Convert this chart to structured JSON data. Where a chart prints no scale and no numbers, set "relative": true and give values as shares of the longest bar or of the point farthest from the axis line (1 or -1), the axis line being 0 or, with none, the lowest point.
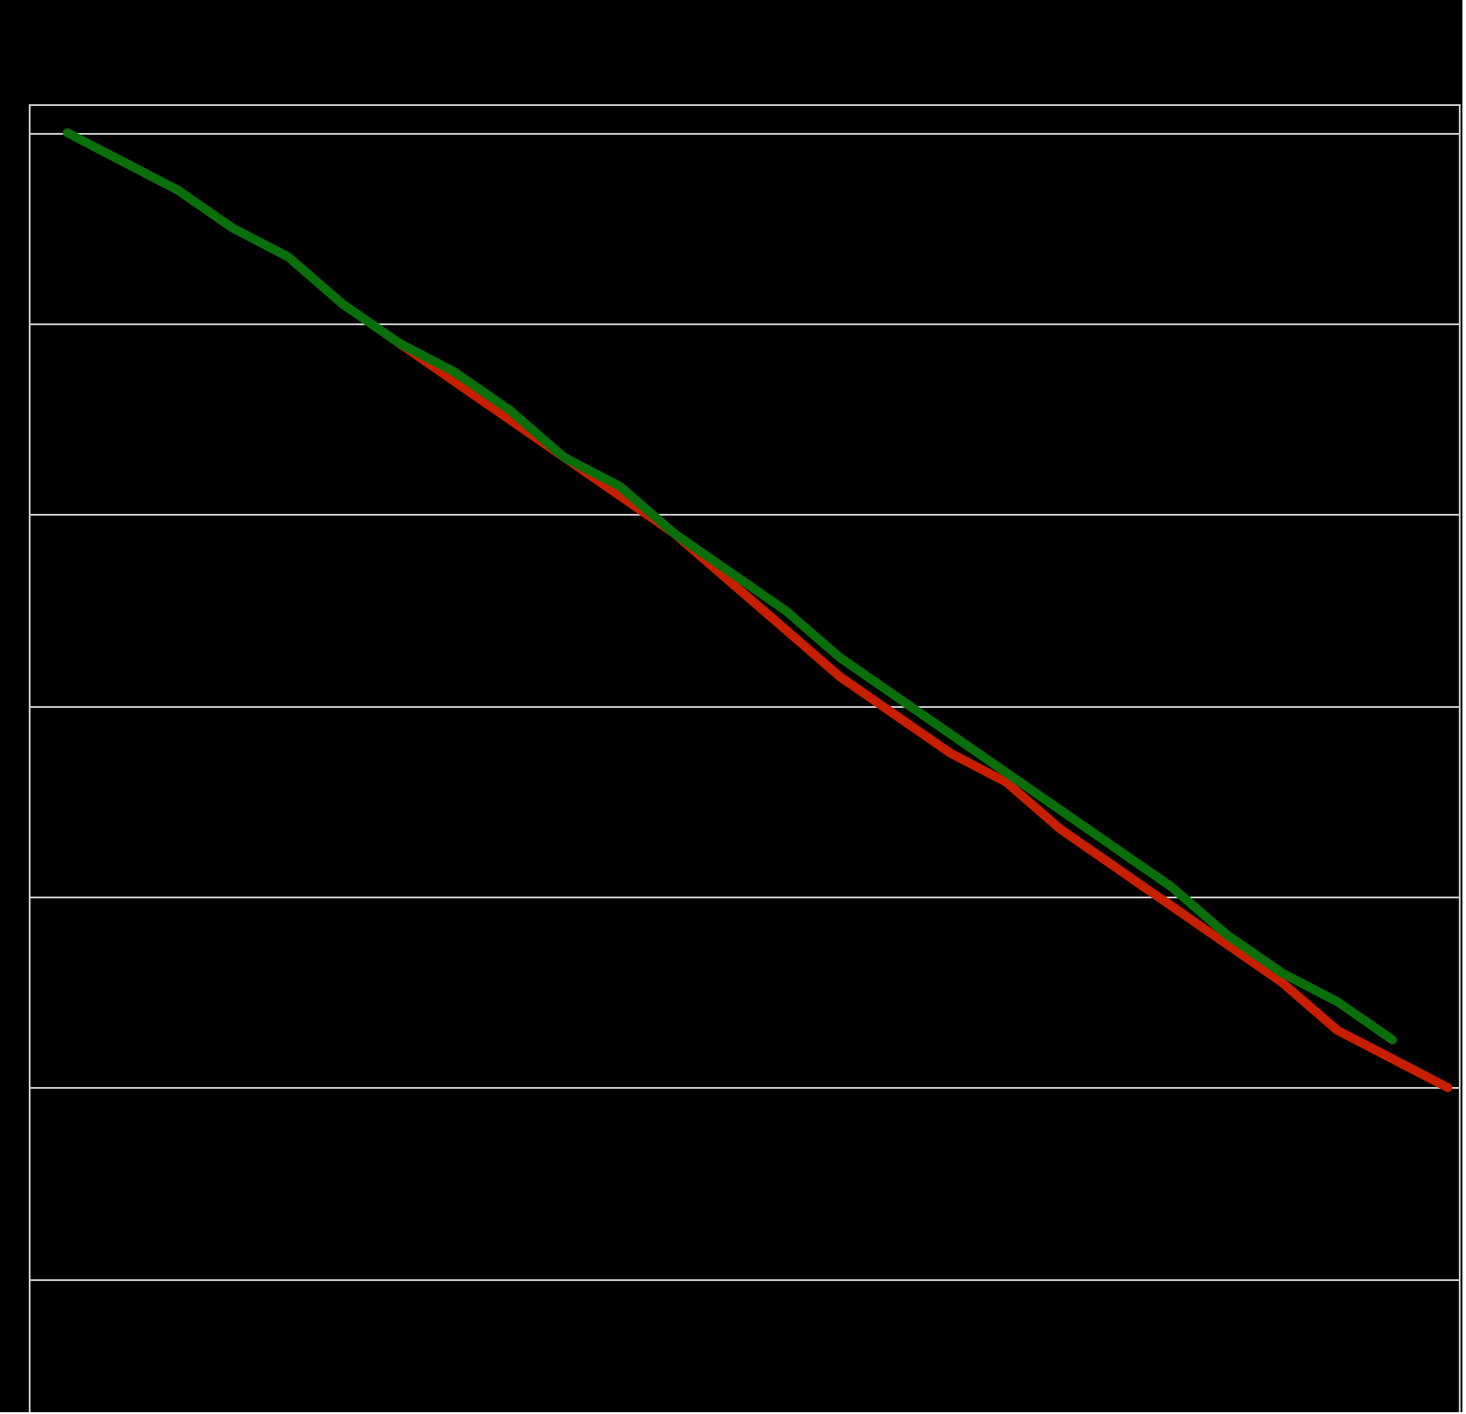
{
  "chart_data": {
    "type": "line",
    "relative": true,
    "grid": "y",
    "marker": "none",
    "line_style": "solid",
    "categories": [
      null,
      null,
      null,
      null,
      null,
      null,
      null,
      null,
      null,
      null,
      null,
      null,
      null,
      null,
      null,
      null,
      null,
      null,
      null,
      null,
      null,
      null,
      null,
      null,
      null,
      null
    ],
    "series": [
      {
        "color": "#c81e00",
        "values": [
          null,
          null,
          null,
          null,
          null,
          null,
          0.78,
          0.74,
          0.7,
          0.66,
          0.62,
          0.58,
          0.53,
          0.48,
          0.43,
          0.39,
          0.35,
          0.32,
          0.27,
          0.23,
          0.19,
          0.15,
          0.11,
          0.06,
          0.03,
          0.0
        ]
      },
      {
        "color": "#0a6e0a",
        "values": [
          1.0,
          0.97,
          0.94,
          0.9,
          0.87,
          0.82,
          0.78,
          0.75,
          0.71,
          0.66,
          0.63,
          0.58,
          0.54,
          0.5,
          0.45,
          0.41,
          0.37,
          0.33,
          0.29,
          0.25,
          0.21,
          0.16,
          0.12,
          0.09,
          0.05,
          null
        ]
      }
    ]
  }
}
